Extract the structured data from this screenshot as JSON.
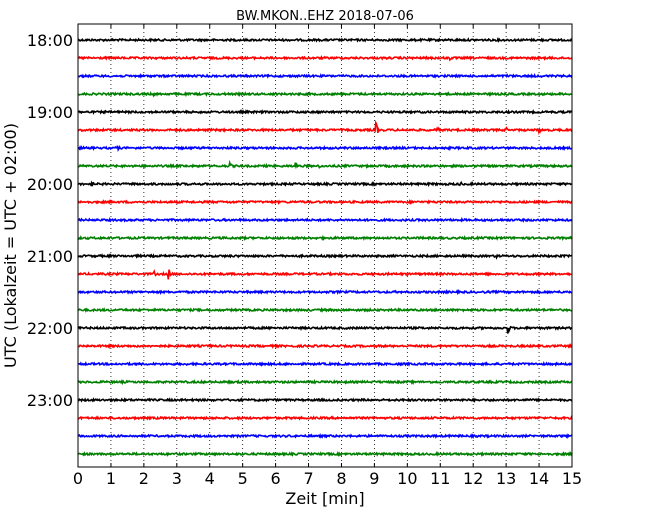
{
  "chart_data": {
    "type": "line",
    "title": "BW.MKON..EHZ 2018-07-06",
    "xlabel": "Zeit  [min]",
    "ylabel": "UTC (Lokalzeit = UTC + 02:00)",
    "xlim": [
      0,
      15
    ],
    "x_ticks": [
      "0",
      "1",
      "2",
      "3",
      "4",
      "5",
      "6",
      "7",
      "8",
      "9",
      "10",
      "11",
      "12",
      "13",
      "14",
      "15"
    ],
    "y_ticks": [
      "18:00",
      "19:00",
      "20:00",
      "21:00",
      "22:00",
      "23:00"
    ],
    "grid": "vertical dotted at each minute",
    "trace_colors": [
      "#000000",
      "#ff0000",
      "#0000ff",
      "#008000"
    ],
    "traces": [
      {
        "start": "18:00",
        "events": []
      },
      {
        "start": "18:15",
        "events": [
          {
            "t": 10.9,
            "amp": 0.35
          },
          {
            "t": 11.3,
            "amp": 0.3
          }
        ]
      },
      {
        "start": "18:30",
        "events": [
          {
            "t": 13.0,
            "amp": 0.3
          }
        ]
      },
      {
        "start": "18:45",
        "events": [
          {
            "t": 2.3,
            "amp": 0.25
          }
        ]
      },
      {
        "start": "19:00",
        "events": [
          {
            "t": 4.5,
            "amp": 0.3
          }
        ]
      },
      {
        "start": "19:15",
        "events": [
          {
            "t": 9.05,
            "amp": 1.0
          },
          {
            "t": 10.9,
            "amp": 0.5
          },
          {
            "t": 13.0,
            "amp": 0.4
          },
          {
            "t": 14.0,
            "amp": 0.4
          }
        ]
      },
      {
        "start": "19:30",
        "events": [
          {
            "t": 1.2,
            "amp": 0.4
          }
        ]
      },
      {
        "start": "19:45",
        "events": [
          {
            "t": 4.6,
            "amp": 0.5
          },
          {
            "t": 6.6,
            "amp": 0.5
          },
          {
            "t": 7.3,
            "amp": 0.4
          }
        ]
      },
      {
        "start": "20:00",
        "events": [
          {
            "t": 0.4,
            "amp": 0.55
          },
          {
            "t": 10.6,
            "amp": 0.35
          },
          {
            "t": 11.6,
            "amp": 0.4
          }
        ]
      },
      {
        "start": "20:15",
        "events": []
      },
      {
        "start": "20:30",
        "events": []
      },
      {
        "start": "20:45",
        "events": []
      },
      {
        "start": "21:00",
        "events": [
          {
            "t": 12.7,
            "amp": 0.35
          }
        ]
      },
      {
        "start": "21:15",
        "events": [
          {
            "t": 2.3,
            "amp": 0.45
          },
          {
            "t": 2.75,
            "amp": 0.75
          }
        ]
      },
      {
        "start": "21:30",
        "events": []
      },
      {
        "start": "21:45",
        "events": []
      },
      {
        "start": "22:00",
        "events": [
          {
            "t": 13.05,
            "amp": 0.8
          }
        ]
      },
      {
        "start": "22:15",
        "events": []
      },
      {
        "start": "22:30",
        "events": []
      },
      {
        "start": "22:45",
        "events": []
      },
      {
        "start": "23:00",
        "events": []
      },
      {
        "start": "23:15",
        "events": []
      },
      {
        "start": "23:30",
        "events": []
      },
      {
        "start": "23:45",
        "events": []
      }
    ]
  }
}
